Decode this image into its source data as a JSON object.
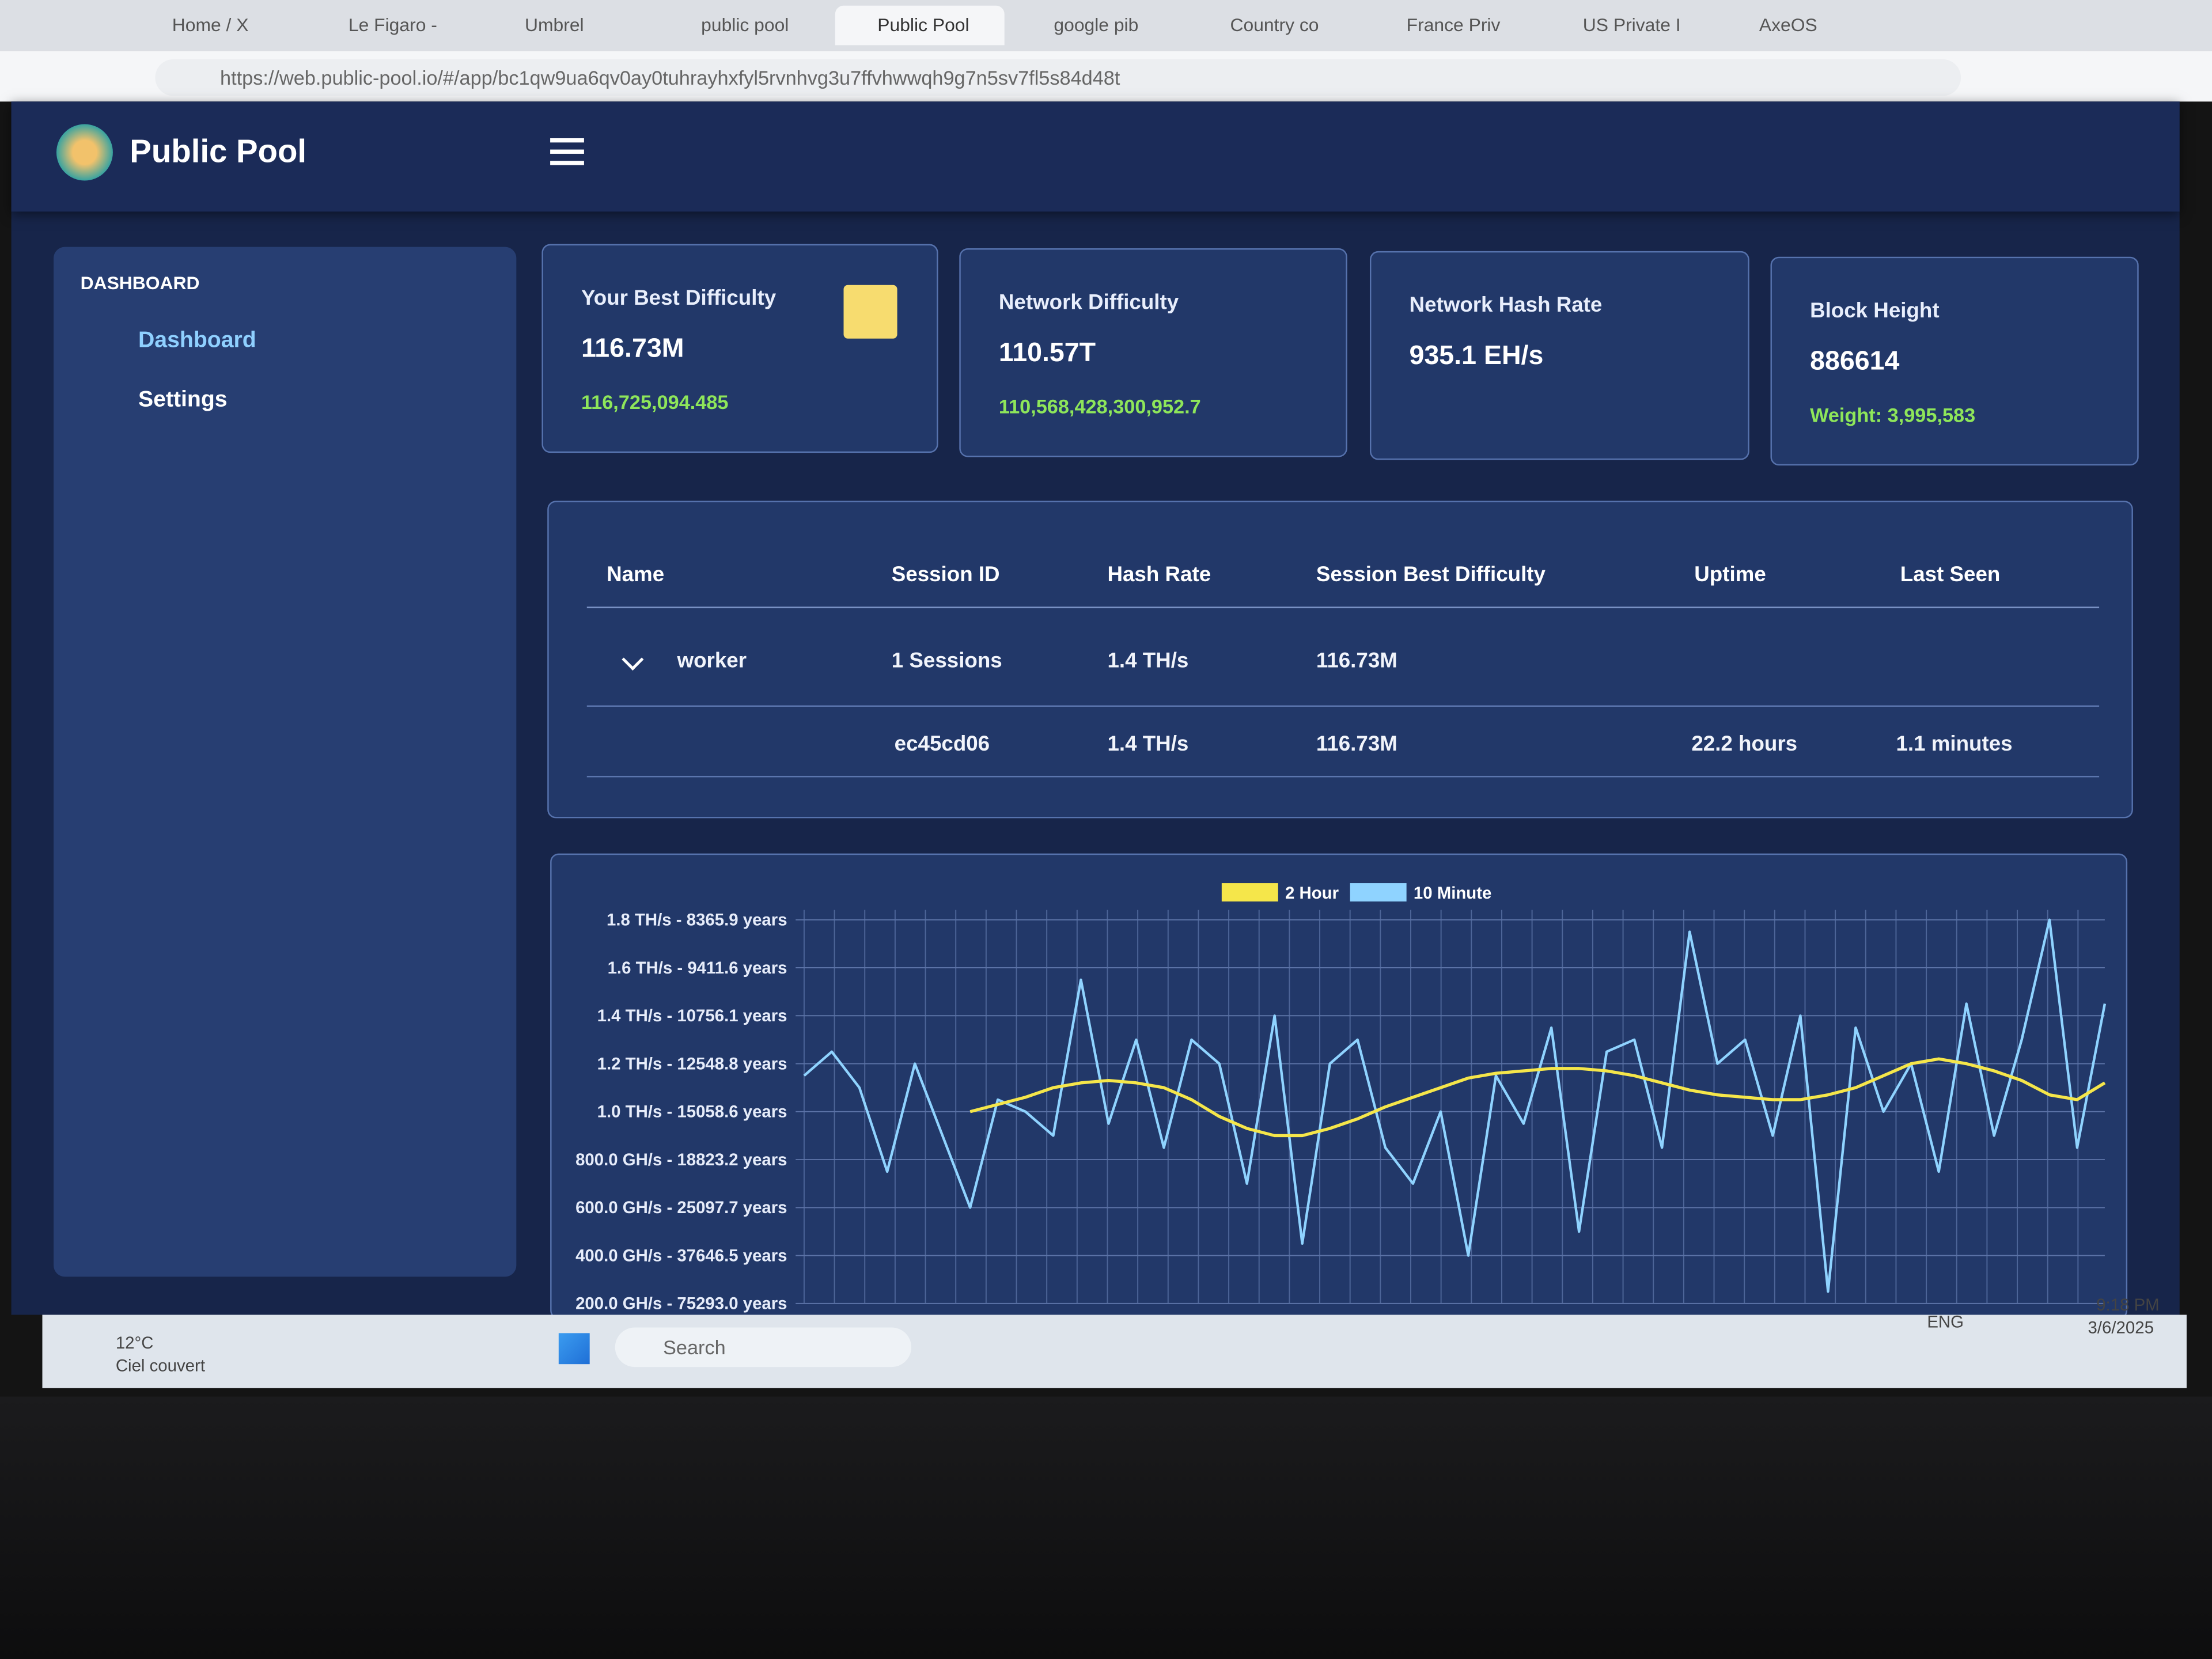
{
  "browser": {
    "tabs": [
      "Home / X",
      "Le Figaro -",
      "Umbrel",
      "public pool",
      "Public Pool",
      "google pib",
      "Country co",
      "France Priv",
      "US Private I",
      "AxeOS"
    ],
    "url": "https://web.public-pool.io/#/app/bc1qw9ua6qv0ay0tuhrayhxfyl5rvnhvg3u7ffvhwwqh9g7n5sv7fl5s84d48t"
  },
  "app": {
    "brand": "Public Pool",
    "sidebar": {
      "section": "DASHBOARD",
      "items": [
        "Dashboard",
        "Settings"
      ]
    }
  },
  "cards": [
    {
      "title": "Your Best Difficulty",
      "value": "116.73M",
      "detail": "116,725,094.485"
    },
    {
      "title": "Network Difficulty",
      "value": "110.57T",
      "detail": "110,568,428,300,952.7"
    },
    {
      "title": "Network Hash Rate",
      "value": "935.1 EH/s"
    },
    {
      "title": "Block Height",
      "value": "886614",
      "detail": "Weight: 3,995,583"
    }
  ],
  "table": {
    "headers": [
      "Name",
      "Session ID",
      "Hash Rate",
      "Session Best Difficulty",
      "Uptime",
      "Last Seen"
    ],
    "worker": {
      "name": "worker",
      "sessions": "1 Sessions",
      "hash_rate": "1.4 TH/s",
      "best": "116.73M"
    },
    "session": {
      "id": "ec45cd06",
      "hash_rate": "1.4 TH/s",
      "best": "116.73M",
      "uptime": "22.2 hours",
      "last_seen": "1.1 minutes"
    }
  },
  "chart_data": {
    "type": "line",
    "ylim": [
      0.2,
      1.8
    ],
    "yticks": [
      {
        "value": 1.8,
        "label": "1.8 TH/s - 8365.9 years"
      },
      {
        "value": 1.6,
        "label": "1.6 TH/s - 9411.6 years"
      },
      {
        "value": 1.4,
        "label": "1.4 TH/s - 10756.1 years"
      },
      {
        "value": 1.2,
        "label": "1.2 TH/s - 12548.8 years"
      },
      {
        "value": 1.0,
        "label": "1.0 TH/s - 15058.6 years"
      },
      {
        "value": 0.8,
        "label": "800.0 GH/s - 18823.2 years"
      },
      {
        "value": 0.6,
        "label": "600.0 GH/s - 25097.7 years"
      },
      {
        "value": 0.4,
        "label": "400.0 GH/s - 37646.5 years"
      },
      {
        "value": 0.2,
        "label": "200.0 GH/s - 75293.0 years"
      }
    ],
    "grid": true,
    "series": [
      {
        "name": "2 Hour",
        "color": "#f5e64a",
        "values": [
          null,
          null,
          null,
          null,
          null,
          null,
          1.0,
          1.03,
          1.06,
          1.1,
          1.12,
          1.13,
          1.12,
          1.1,
          1.05,
          0.98,
          0.93,
          0.9,
          0.9,
          0.93,
          0.97,
          1.02,
          1.06,
          1.1,
          1.14,
          1.16,
          1.17,
          1.18,
          1.18,
          1.17,
          1.15,
          1.12,
          1.09,
          1.07,
          1.06,
          1.05,
          1.05,
          1.07,
          1.1,
          1.15,
          1.2,
          1.22,
          1.2,
          1.17,
          1.13,
          1.07,
          1.05,
          1.12
        ]
      },
      {
        "name": "10 Minute",
        "color": "#8fd3ff",
        "values": [
          1.15,
          1.25,
          1.1,
          0.75,
          1.2,
          0.9,
          0.6,
          1.05,
          1.0,
          0.9,
          1.55,
          0.95,
          1.3,
          0.85,
          1.3,
          1.2,
          0.7,
          1.4,
          0.45,
          1.2,
          1.3,
          0.85,
          0.7,
          1.0,
          0.4,
          1.15,
          0.95,
          1.35,
          0.5,
          1.25,
          1.3,
          0.85,
          1.75,
          1.2,
          1.3,
          0.9,
          1.4,
          0.25,
          1.35,
          1.0,
          1.2,
          0.75,
          1.45,
          0.9,
          1.3,
          1.8,
          0.85,
          1.45
        ]
      }
    ]
  },
  "taskbar": {
    "temperature": "12°C",
    "weather": "Ciel couvert",
    "search": "Search",
    "language": "ENG",
    "time": "9:18 PM",
    "date": "3/6/2025"
  }
}
